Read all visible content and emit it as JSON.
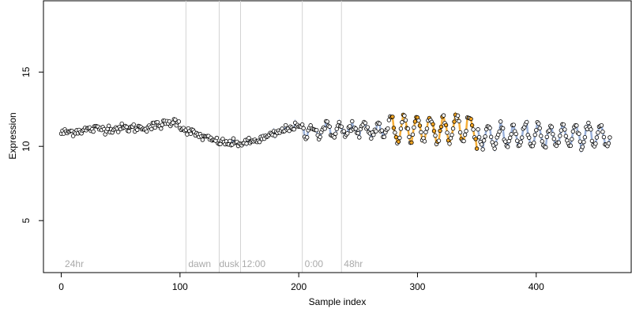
{
  "chart_data": {
    "type": "scatter",
    "title": "",
    "xlabel": "Sample index",
    "ylabel": "Expression",
    "xlim": [
      -15,
      480
    ],
    "ylim": [
      1.5,
      19.8
    ],
    "xticks": [
      0,
      100,
      200,
      300,
      400
    ],
    "yticks": [
      5,
      10,
      15
    ],
    "grid": false,
    "legend": null,
    "colors": {
      "points_fill": "#ffffff",
      "points_stroke": "#000000",
      "orange_series": "#f5a623",
      "blue_series": "#8fa9d6",
      "vline": "#d3d3d3",
      "annotation_text": "#aaaaaa",
      "axis": "#000000"
    },
    "annotations": [
      {
        "x": 3,
        "label": "24hr"
      },
      {
        "x": 107,
        "label": "dawn"
      },
      {
        "x": 133,
        "label": "dusk"
      },
      {
        "x": 152,
        "label": "12:00"
      },
      {
        "x": 205,
        "label": "0:00"
      },
      {
        "x": 238,
        "label": "48hr"
      }
    ],
    "vlines": [
      105,
      133,
      151,
      203,
      236
    ],
    "n_points": 463,
    "segments": [
      {
        "x_start": 0,
        "x_end": 99,
        "kind": "hump",
        "base": 10.9,
        "amp": 0.9,
        "noise": 0.25
      },
      {
        "x_start": 100,
        "x_end": 202,
        "kind": "dip",
        "base": 11.3,
        "low": 10.2,
        "noise": 0.22
      },
      {
        "x_start": 203,
        "x_end": 275,
        "kind": "wave",
        "mean": 11.1,
        "amp": 0.4,
        "period": 11,
        "noise": 0.3
      },
      {
        "x_start": 276,
        "x_end": 350,
        "kind": "wave",
        "mean": 11.2,
        "amp": 0.8,
        "period": 11,
        "noise": 0.3
      },
      {
        "x_start": 351,
        "x_end": 462,
        "kind": "wave",
        "mean": 10.7,
        "amp": 0.7,
        "period": 10.5,
        "noise": 0.2
      }
    ]
  }
}
